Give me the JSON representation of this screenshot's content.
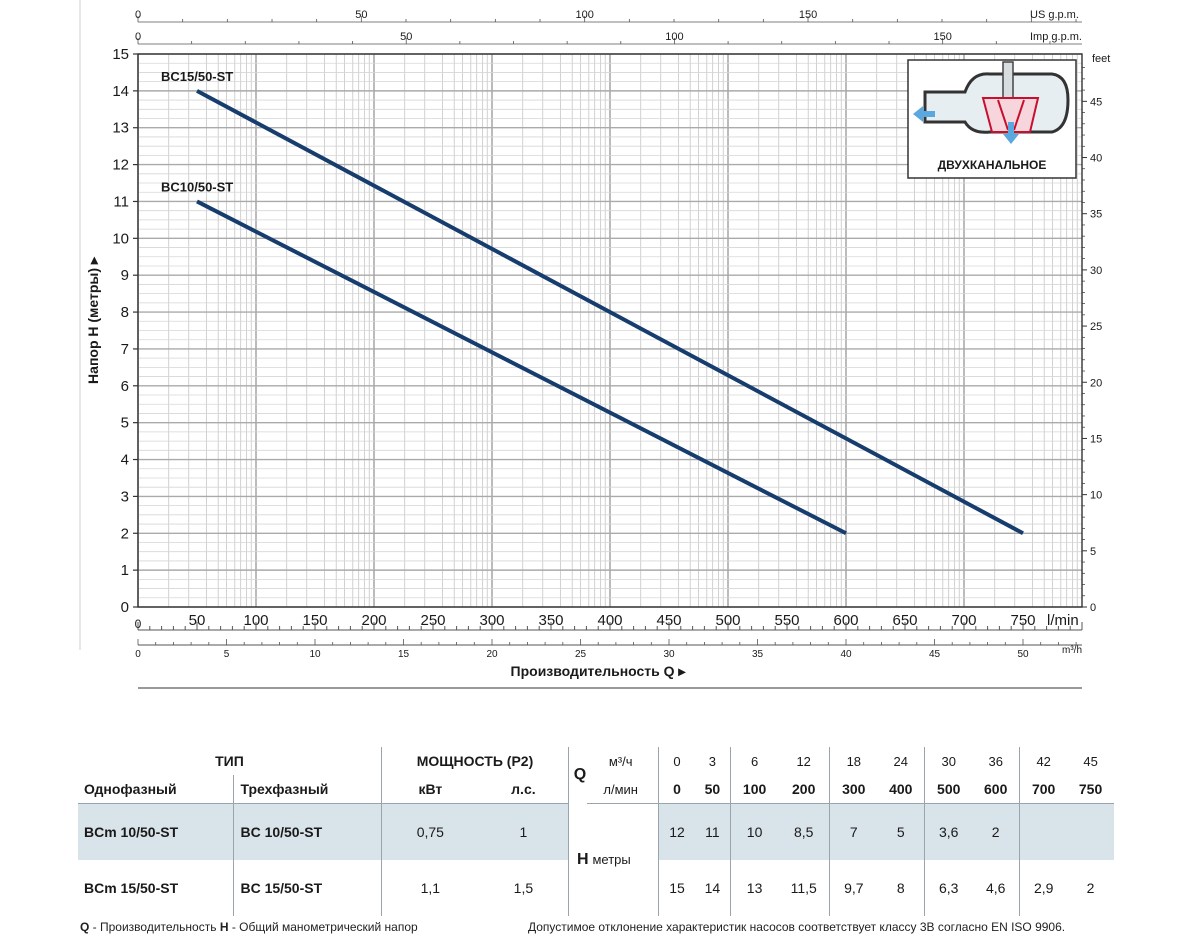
{
  "chart_data": {
    "type": "line",
    "ylabel": "Напор H (метры)",
    "xlabel": "Производительность Q",
    "ylim": [
      0,
      15
    ],
    "xlim_lmin": [
      0,
      750
    ],
    "y_ticks": [
      0,
      1,
      2,
      3,
      4,
      5,
      6,
      7,
      8,
      9,
      10,
      11,
      12,
      13,
      14,
      15
    ],
    "x_ticks_lmin": [
      0,
      50,
      100,
      150,
      200,
      250,
      300,
      350,
      400,
      450,
      500,
      550,
      600,
      650,
      700,
      750
    ],
    "x_unit_lmin": "l/min",
    "x_ticks_m3h": [
      0,
      5,
      10,
      15,
      20,
      25,
      30,
      35,
      40,
      45,
      50
    ],
    "x_unit_m3h": "m³/h",
    "top_ticks_usgpm": [
      0,
      50,
      100,
      150
    ],
    "top_unit_usgpm": "US g.p.m.",
    "top_ticks_impgpm": [
      0,
      50,
      100,
      150
    ],
    "top_unit_impgpm": "Imp g.p.m.",
    "right_ticks_feet": [
      0,
      5,
      10,
      15,
      20,
      25,
      30,
      35,
      40,
      45
    ],
    "right_unit_feet": "feet",
    "grid": true,
    "series": [
      {
        "name": "BC15/50-ST",
        "x": [
          50,
          750
        ],
        "y": [
          14,
          2
        ],
        "color": "#163d6e"
      },
      {
        "name": "BC10/50-ST",
        "x": [
          50,
          600
        ],
        "y": [
          11,
          2
        ],
        "color": "#163d6e"
      }
    ],
    "inset_label": "ДВУХКАНАЛЬНОЕ"
  },
  "table": {
    "header_type": "ТИП",
    "header_power": "МОЩНОСТЬ (P2)",
    "header_single": "Однофазный",
    "header_three": "Трехфазный",
    "unit_kw": "кВт",
    "unit_hp": "л.с.",
    "q_symbol": "Q",
    "q_unit_m3h": "м³/ч",
    "q_unit_lmin": "л/мин",
    "h_symbol": "H",
    "h_unit": "метры",
    "q_m3h": [
      "0",
      "3",
      "6",
      "12",
      "18",
      "24",
      "30",
      "36",
      "42",
      "45"
    ],
    "q_lmin": [
      "0",
      "50",
      "100",
      "200",
      "300",
      "400",
      "500",
      "600",
      "700",
      "750"
    ],
    "rows": [
      {
        "single": "BCm 10/50-ST",
        "three": "BC 10/50-ST",
        "kw": "0,75",
        "hp": "1",
        "h": [
          "12",
          "11",
          "10",
          "8,5",
          "7",
          "5",
          "3,6",
          "2",
          "",
          ""
        ]
      },
      {
        "single": "BCm 15/50-ST",
        "three": "BC 15/50-ST",
        "kw": "1,1",
        "hp": "1,5",
        "h": [
          "15",
          "14",
          "13",
          "11,5",
          "9,7",
          "8",
          "6,3",
          "4,6",
          "2,9",
          "2"
        ]
      }
    ]
  },
  "footnote_left_q": "Q",
  "footnote_left_q_text": " - Производительность  ",
  "footnote_left_h": "H",
  "footnote_left_h_text": " - Общий манометрический напор",
  "footnote_right": "Допустимое отклонение характеристик насосов соответствует классу 3B согласно EN ISO 9906."
}
